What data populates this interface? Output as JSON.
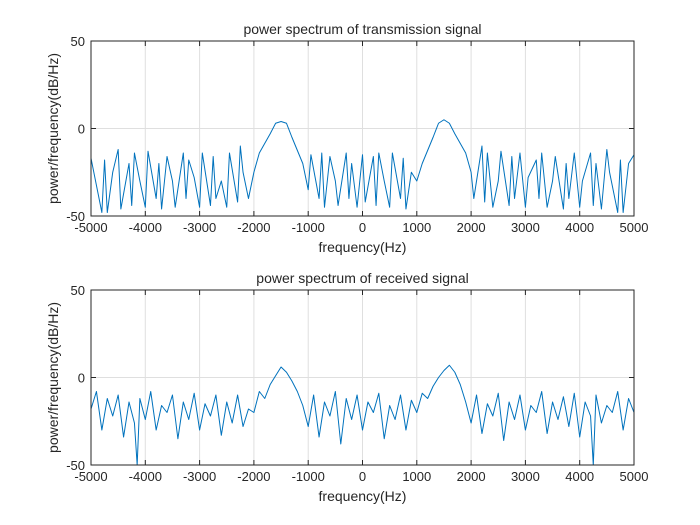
{
  "colors": {
    "series": "#0072BD",
    "axes": "#262626",
    "grid": "#dfdfdf"
  },
  "chart_data": [
    {
      "type": "line",
      "title": "power spectrum of transmission signal",
      "xlabel": "frequency(Hz)",
      "ylabel": "power/frequency(dB/Hz)",
      "xlim": [
        -5000,
        5000
      ],
      "ylim": [
        -50,
        50
      ],
      "xticks": [
        -5000,
        -4000,
        -3000,
        -2000,
        -1000,
        0,
        1000,
        2000,
        3000,
        4000,
        5000
      ],
      "yticks": [
        -50,
        0,
        50
      ],
      "grid": true,
      "series": [
        {
          "color": "#0072BD",
          "x": [
            -5000,
            -4800,
            -4750,
            -4700,
            -4600,
            -4500,
            -4450,
            -4300,
            -4250,
            -4200,
            -4100,
            -4000,
            -3950,
            -3800,
            -3750,
            -3700,
            -3600,
            -3500,
            -3450,
            -3300,
            -3250,
            -3200,
            -3100,
            -3000,
            -2950,
            -2800,
            -2750,
            -2700,
            -2600,
            -2500,
            -2450,
            -2300,
            -2250,
            -2200,
            -2100,
            -2000,
            -1900,
            -1700,
            -1600,
            -1500,
            -1400,
            -1300,
            -1100,
            -1000,
            -950,
            -800,
            -750,
            -700,
            -600,
            -500,
            -450,
            -300,
            -250,
            -200,
            -100,
            0,
            50,
            200,
            250,
            300,
            400,
            500,
            550,
            700,
            750,
            800,
            900,
            1000,
            1100,
            1300,
            1400,
            1500,
            1600,
            1700,
            1900,
            2000,
            2050,
            2200,
            2250,
            2300,
            2400,
            2500,
            2550,
            2700,
            2750,
            2800,
            2900,
            3000,
            3050,
            3200,
            3250,
            3300,
            3400,
            3500,
            3550,
            3700,
            3750,
            3800,
            3900,
            4000,
            4050,
            4200,
            4250,
            4300,
            4400,
            4500,
            4550,
            4700,
            4750,
            4800,
            4900,
            5000
          ],
          "y": [
            -17,
            -48,
            -18,
            -48,
            -25,
            -12,
            -46,
            -20,
            -44,
            -14,
            -30,
            -45,
            -13,
            -40,
            -20,
            -46,
            -16,
            -30,
            -45,
            -14,
            -40,
            -18,
            -28,
            -45,
            -14,
            -44,
            -16,
            -40,
            -30,
            -45,
            -14,
            -42,
            -10,
            -25,
            -40,
            -25,
            -14,
            -3,
            3,
            4,
            3,
            -5,
            -20,
            -35,
            -15,
            -40,
            -14,
            -45,
            -16,
            -30,
            -44,
            -14,
            -40,
            -20,
            -45,
            -15,
            -42,
            -16,
            -44,
            -14,
            -30,
            -45,
            -14,
            -40,
            -17,
            -46,
            -25,
            -30,
            -20,
            -5,
            3,
            5,
            3,
            -3,
            -14,
            -25,
            -40,
            -10,
            -42,
            -14,
            -45,
            -30,
            -13,
            -44,
            -16,
            -40,
            -14,
            -45,
            -28,
            -18,
            -40,
            -14,
            -45,
            -30,
            -16,
            -46,
            -20,
            -40,
            -14,
            -45,
            -30,
            -14,
            -44,
            -20,
            -46,
            -12,
            -25,
            -48,
            -18,
            -48,
            -20,
            -15
          ]
        }
      ]
    },
    {
      "type": "line",
      "title": "power spectrum of received signal",
      "xlabel": "frequency(Hz)",
      "ylabel": "power/frequency(dB/Hz)",
      "xlim": [
        -5000,
        5000
      ],
      "ylim": [
        -50,
        50
      ],
      "xticks": [
        -5000,
        -4000,
        -3000,
        -2000,
        -1000,
        0,
        1000,
        2000,
        3000,
        4000,
        5000
      ],
      "yticks": [
        -50,
        0,
        50
      ],
      "grid": true,
      "series": [
        {
          "color": "#0072BD",
          "x": [
            -5000,
            -4900,
            -4800,
            -4700,
            -4600,
            -4500,
            -4400,
            -4300,
            -4200,
            -4150,
            -4100,
            -4000,
            -3900,
            -3800,
            -3700,
            -3600,
            -3500,
            -3400,
            -3300,
            -3200,
            -3100,
            -3000,
            -2900,
            -2800,
            -2700,
            -2600,
            -2500,
            -2400,
            -2300,
            -2200,
            -2100,
            -2000,
            -1900,
            -1800,
            -1700,
            -1600,
            -1500,
            -1400,
            -1300,
            -1200,
            -1100,
            -1000,
            -900,
            -800,
            -700,
            -600,
            -500,
            -400,
            -300,
            -200,
            -100,
            0,
            100,
            200,
            300,
            400,
            500,
            600,
            700,
            800,
            900,
            1000,
            1100,
            1200,
            1300,
            1400,
            1500,
            1600,
            1700,
            1800,
            1900,
            2000,
            2100,
            2200,
            2300,
            2400,
            2500,
            2600,
            2700,
            2800,
            2900,
            3000,
            3100,
            3200,
            3300,
            3400,
            3500,
            3600,
            3700,
            3800,
            3900,
            4000,
            4100,
            4200,
            4250,
            4300,
            4400,
            4500,
            4600,
            4700,
            4800,
            4900,
            5000
          ],
          "y": [
            -18,
            -8,
            -30,
            -12,
            -22,
            -10,
            -34,
            -14,
            -26,
            -50,
            -12,
            -24,
            -8,
            -30,
            -16,
            -20,
            -10,
            -35,
            -14,
            -24,
            -9,
            -30,
            -15,
            -22,
            -10,
            -33,
            -14,
            -26,
            -10,
            -28,
            -18,
            -20,
            -8,
            -12,
            -4,
            1,
            6,
            3,
            -2,
            -8,
            -16,
            -28,
            -10,
            -34,
            -14,
            -22,
            -8,
            -38,
            -12,
            -24,
            -10,
            -30,
            -14,
            -20,
            -9,
            -35,
            -16,
            -24,
            -10,
            -30,
            -13,
            -20,
            -9,
            -12,
            -5,
            0,
            4,
            7,
            3,
            -4,
            -14,
            -26,
            -10,
            -32,
            -15,
            -22,
            -9,
            -36,
            -14,
            -24,
            -10,
            -30,
            -16,
            -20,
            -8,
            -32,
            -14,
            -24,
            -11,
            -28,
            -9,
            -34,
            -14,
            -22,
            -50,
            -10,
            -26,
            -16,
            -20,
            -8,
            -30,
            -12,
            -20
          ]
        }
      ]
    }
  ]
}
